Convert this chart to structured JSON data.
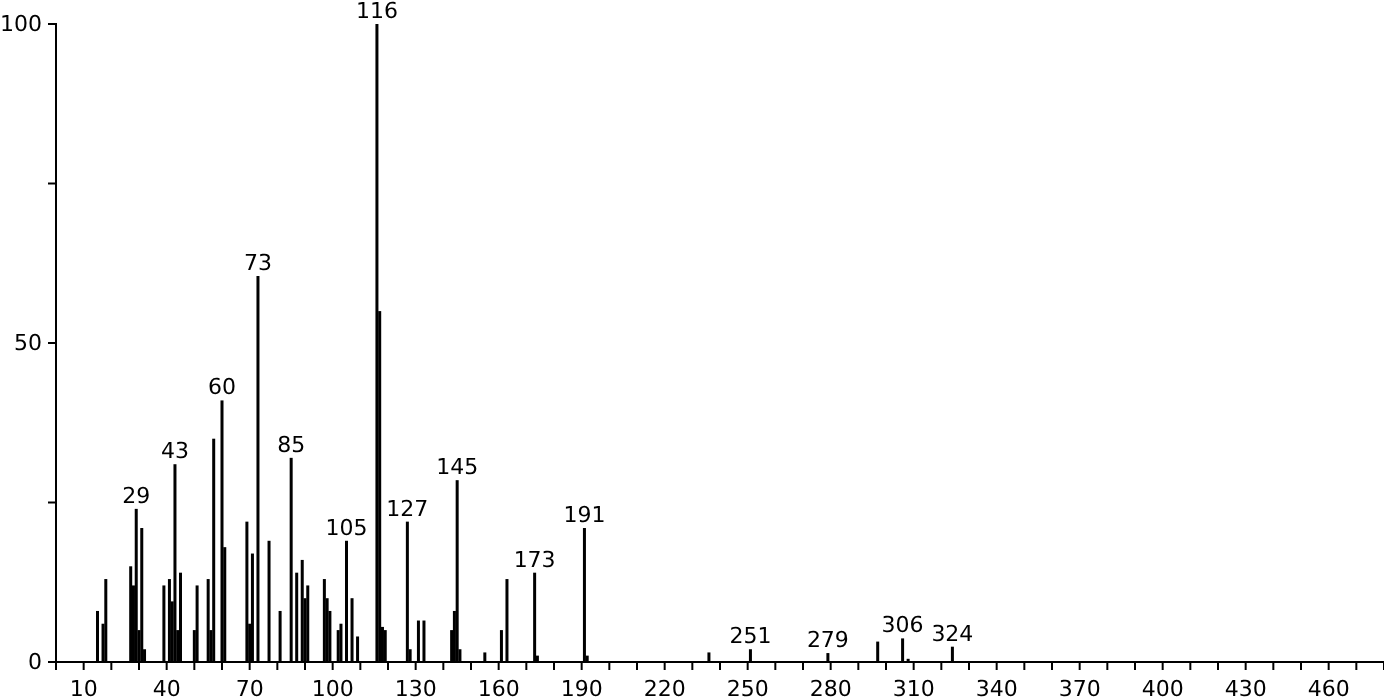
{
  "chart_data": {
    "type": "bar",
    "color": "#000000",
    "x": [
      15,
      17,
      18,
      27,
      28,
      29,
      30,
      31,
      32,
      39,
      41,
      42,
      43,
      44,
      45,
      50,
      51,
      55,
      56,
      57,
      60,
      61,
      69,
      70,
      71,
      73,
      77,
      81,
      85,
      87,
      89,
      90,
      91,
      97,
      98,
      99,
      102,
      103,
      105,
      107,
      109,
      116,
      117,
      118,
      119,
      127,
      128,
      131,
      133,
      143,
      144,
      145,
      146,
      155,
      161,
      163,
      173,
      174,
      191,
      192,
      236,
      251,
      279,
      297,
      306,
      308,
      324
    ],
    "values": [
      8,
      6,
      13,
      15,
      12,
      24,
      5,
      21,
      2,
      12,
      13,
      9.5,
      31,
      5,
      14,
      5,
      12,
      13,
      5,
      35,
      41,
      18,
      22,
      6,
      17,
      60.5,
      19,
      8,
      32,
      14,
      16,
      10,
      12,
      13,
      10,
      8,
      5,
      6,
      19,
      10,
      4,
      100,
      55,
      5.5,
      5,
      22,
      2,
      6.5,
      6.5,
      5,
      8,
      28.5,
      2,
      1.5,
      5,
      13,
      14,
      1,
      21,
      1,
      1.5,
      2,
      1.4,
      3.2,
      3.7,
      0.5,
      2.4
    ],
    "xlim": [
      0,
      480
    ],
    "xticks": [
      10,
      {
        "value": 20,
        "label": null
      },
      {
        "value": 30,
        "label": null
      },
      40,
      {
        "value": 50,
        "label": null
      },
      {
        "value": 60,
        "label": null
      },
      70,
      {
        "value": 80,
        "label": null
      },
      {
        "value": 90,
        "label": null
      },
      100,
      {
        "value": 110,
        "label": null
      },
      {
        "value": 120,
        "label": null
      },
      130,
      {
        "value": 140,
        "label": null
      },
      {
        "value": 150,
        "label": null
      },
      160,
      {
        "value": 170,
        "label": null
      },
      {
        "value": 180,
        "label": null
      },
      190,
      {
        "value": 200,
        "label": null
      },
      {
        "value": 210,
        "label": null
      },
      220,
      {
        "value": 230,
        "label": null
      },
      {
        "value": 240,
        "label": null
      },
      250,
      {
        "value": 260,
        "label": null
      },
      {
        "value": 270,
        "label": null
      },
      280,
      {
        "value": 290,
        "label": null
      },
      {
        "value": 300,
        "label": null
      },
      310,
      {
        "value": 320,
        "label": null
      },
      {
        "value": 330,
        "label": null
      },
      340,
      {
        "value": 350,
        "label": null
      },
      {
        "value": 360,
        "label": null
      },
      370,
      {
        "value": 380,
        "label": null
      },
      {
        "value": 390,
        "label": null
      },
      400,
      {
        "value": 410,
        "label": null
      },
      {
        "value": 420,
        "label": null
      },
      430,
      {
        "value": 440,
        "label": null
      },
      {
        "value": 450,
        "label": null
      },
      460,
      {
        "value": 470,
        "label": null
      }
    ],
    "ylim": [
      0,
      100
    ],
    "yticks": [
      0,
      {
        "value": 25,
        "label": null
      },
      50,
      {
        "value": 75,
        "label": null
      },
      100
    ],
    "annotations": [
      {
        "text": "29",
        "x": 29,
        "y": 24
      },
      {
        "text": "43",
        "x": 43,
        "y": 31
      },
      {
        "text": "60",
        "x": 60,
        "y": 41
      },
      {
        "text": "73",
        "x": 73,
        "y": 60.5
      },
      {
        "text": "85",
        "x": 85,
        "y": 32
      },
      {
        "text": "105",
        "x": 105,
        "y": 19
      },
      {
        "text": "116",
        "x": 116,
        "y": 100
      },
      {
        "text": "127",
        "x": 127,
        "y": 22
      },
      {
        "text": "145",
        "x": 145,
        "y": 28.5
      },
      {
        "text": "173",
        "x": 173,
        "y": 14
      },
      {
        "text": "191",
        "x": 191,
        "y": 21
      },
      {
        "text": "251",
        "x": 251,
        "y": 2
      },
      {
        "text": "279",
        "x": 279,
        "y": 1.4
      },
      {
        "text": "306",
        "x": 306,
        "y": 3.7
      },
      {
        "text": "324",
        "x": 324,
        "y": 2.4
      }
    ]
  }
}
